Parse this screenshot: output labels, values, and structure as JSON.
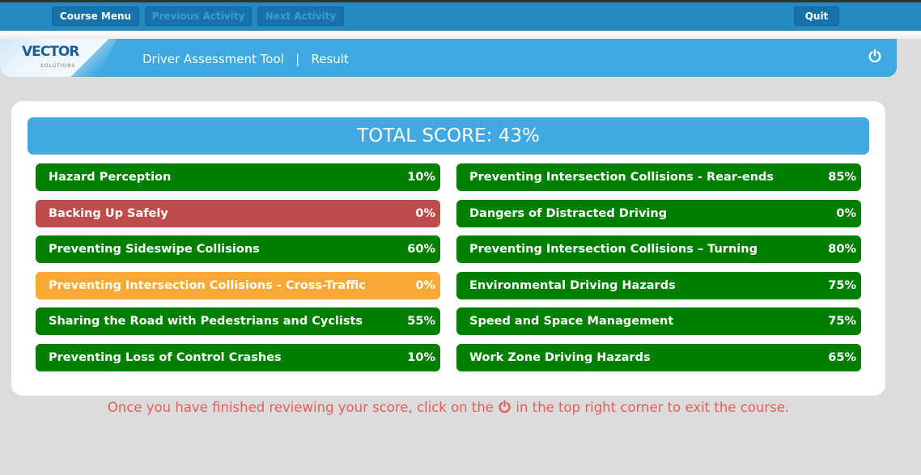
{
  "toolbar": {
    "course_menu": "Course Menu",
    "previous": "Previous Activity",
    "next": "Next Activity",
    "quit": "Quit"
  },
  "header": {
    "logo": "VECTOR",
    "logo_sub": "SOLUTIONS",
    "breadcrumb": "Driver Assessment Tool   |   Result",
    "power_icon": "power-icon"
  },
  "total_score": "TOTAL SCORE: 43%",
  "colors": {
    "pass": "#008000",
    "fail": "#bf4b4b",
    "warn": "#f9a935"
  },
  "left": [
    {
      "label": "Hazard Perception",
      "score": "10%",
      "status": "pass"
    },
    {
      "label": "Backing Up Safely",
      "score": "0%",
      "status": "fail"
    },
    {
      "label": "Preventing Sideswipe Collisions",
      "score": "60%",
      "status": "pass"
    },
    {
      "label": "Preventing Intersection Collisions - Cross-Traffic",
      "score": "0%",
      "status": "warn"
    },
    {
      "label": "Sharing the Road with Pedestrians and Cyclists",
      "score": "55%",
      "status": "pass"
    },
    {
      "label": "Preventing Loss of Control Crashes",
      "score": "10%",
      "status": "pass"
    }
  ],
  "right": [
    {
      "label": "Preventing Intersection Collisions - Rear-ends",
      "score": "85%",
      "status": "pass"
    },
    {
      "label": "Dangers of Distracted Driving",
      "score": "0%",
      "status": "pass"
    },
    {
      "label": "Preventing Intersection Collisions – Turning",
      "score": "80%",
      "status": "pass"
    },
    {
      "label": "Environmental Driving Hazards",
      "score": "75%",
      "status": "pass"
    },
    {
      "label": "Speed and Space Management",
      "score": "75%",
      "status": "pass"
    },
    {
      "label": "Work Zone Driving Hazards",
      "score": "65%",
      "status": "pass"
    }
  ],
  "note": {
    "before": "Once you have finished reviewing your score, click on the ",
    "after": " in the top right corner to exit the course."
  }
}
